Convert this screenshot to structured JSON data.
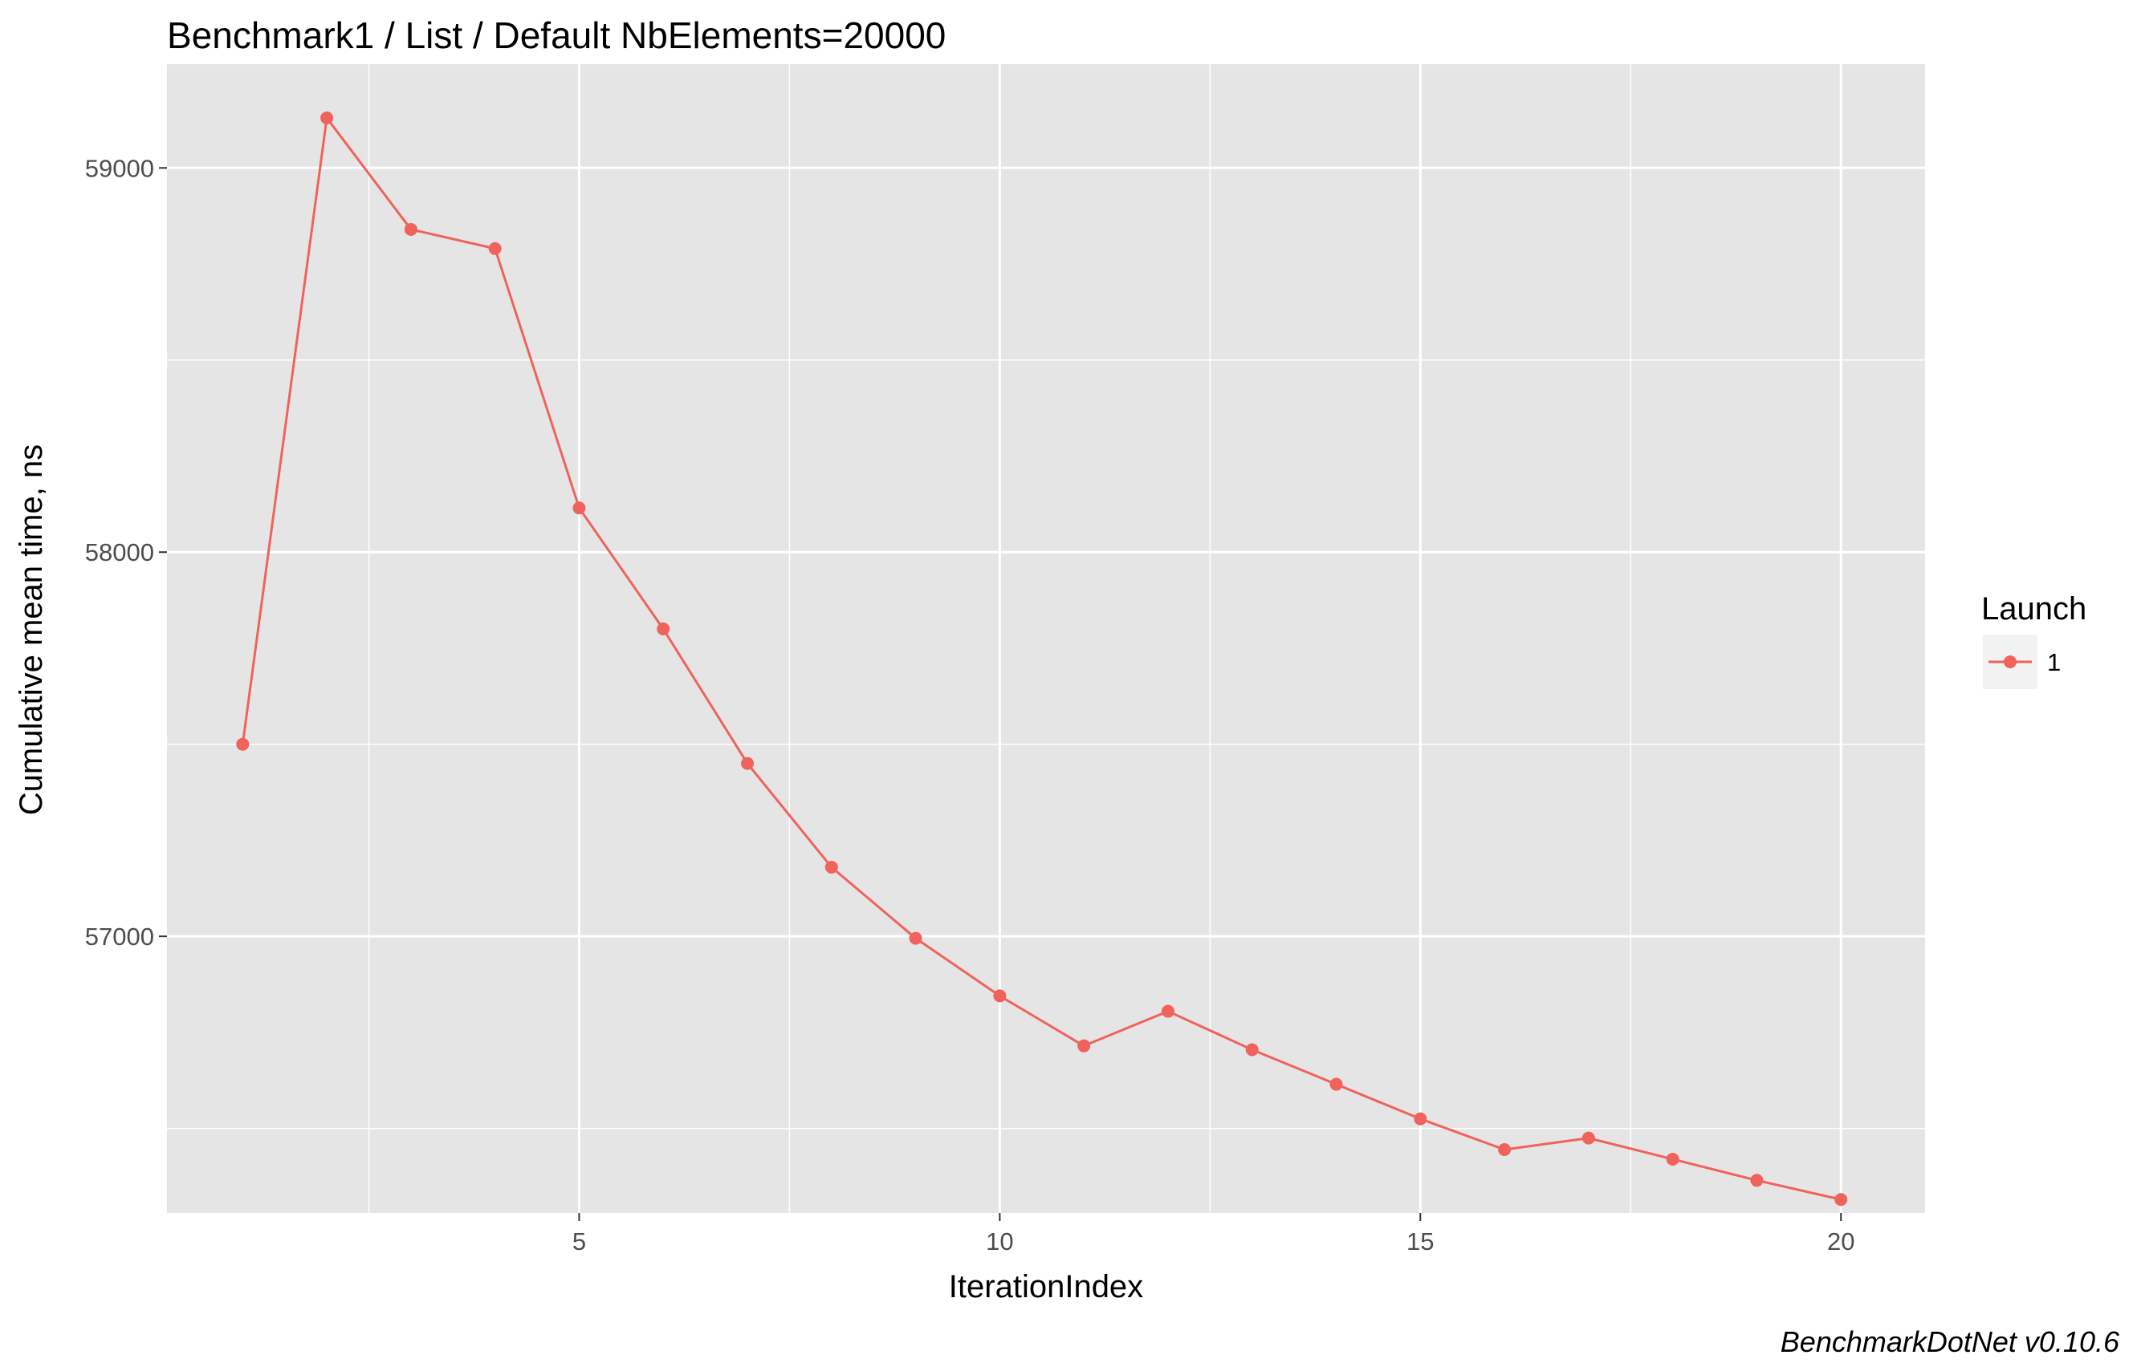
{
  "chart_data": {
    "type": "line",
    "title": "Benchmark1 / List / Default NbElements=20000",
    "xlabel": "IterationIndex",
    "ylabel": "Cumulative mean time, ns",
    "caption": "BenchmarkDotNet v0.10.6",
    "xlim": [
      0.1,
      21.0
    ],
    "ylim": [
      56280,
      59270
    ],
    "x_ticks": [
      5,
      10,
      15,
      20
    ],
    "x_tick_labels": [
      "5",
      "10",
      "15",
      "20"
    ],
    "y_ticks": [
      57000,
      58000,
      59000
    ],
    "y_tick_labels": [
      "57000",
      "58000",
      "59000"
    ],
    "grid": true,
    "legend": {
      "title": "Launch",
      "position": "right",
      "entries": [
        "1"
      ]
    },
    "colors": {
      "panel": "#e5e5e5",
      "grid": "#ffffff",
      "series": "#f0625c"
    },
    "series": [
      {
        "name": "1",
        "x": [
          1,
          2,
          3,
          4,
          5,
          6,
          7,
          8,
          9,
          10,
          11,
          12,
          13,
          14,
          15,
          16,
          17,
          18,
          19,
          20
        ],
        "y": [
          57500,
          59130,
          58840,
          58790,
          58115,
          57800,
          57450,
          57180,
          56995,
          56845,
          56715,
          56805,
          56705,
          56615,
          56525,
          56445,
          56475,
          56420,
          56365,
          56315
        ]
      }
    ]
  }
}
